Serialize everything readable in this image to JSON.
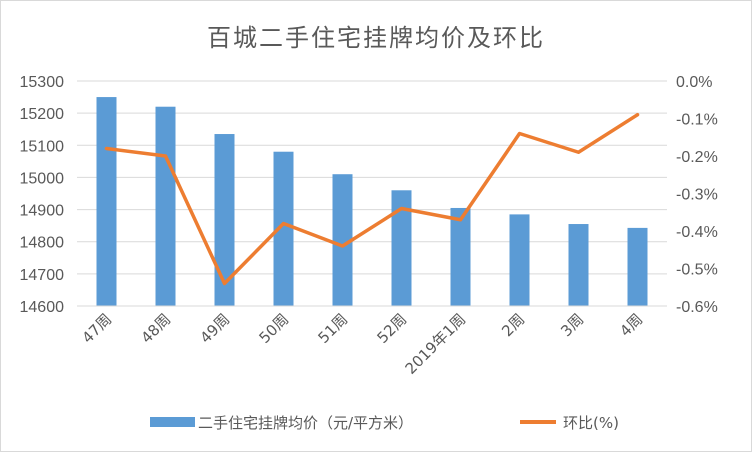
{
  "chart_data": {
    "type": "bar",
    "title": "百城二手住宅挂牌均价及环比",
    "categories": [
      "47周",
      "48周",
      "49周",
      "50周",
      "51周",
      "52周",
      "2019年1周",
      "2周",
      "3周",
      "4周"
    ],
    "series": [
      {
        "name": "二手住宅挂牌均价（元/平方米）",
        "type": "bar",
        "axis": "left",
        "color": "#5b9bd5",
        "values": [
          15250,
          15220,
          15135,
          15080,
          15010,
          14960,
          14905,
          14885,
          14855,
          14843
        ]
      },
      {
        "name": "环比(%)",
        "type": "line",
        "axis": "right",
        "color": "#ed7d31",
        "values": [
          -0.18,
          -0.2,
          -0.54,
          -0.38,
          -0.44,
          -0.34,
          -0.37,
          -0.14,
          -0.19,
          -0.09
        ]
      }
    ],
    "y_left": {
      "ylim": [
        14600,
        15300
      ],
      "ticks": [
        "15300",
        "15200",
        "15100",
        "15000",
        "14900",
        "14800",
        "14700",
        "14600"
      ]
    },
    "y_right": {
      "ylim": [
        -0.6,
        0.0
      ],
      "ticks": [
        "0.0%",
        "-0.1%",
        "-0.2%",
        "-0.3%",
        "-0.4%",
        "-0.5%",
        "-0.6%"
      ]
    },
    "grid": true,
    "legend": "bottom"
  }
}
